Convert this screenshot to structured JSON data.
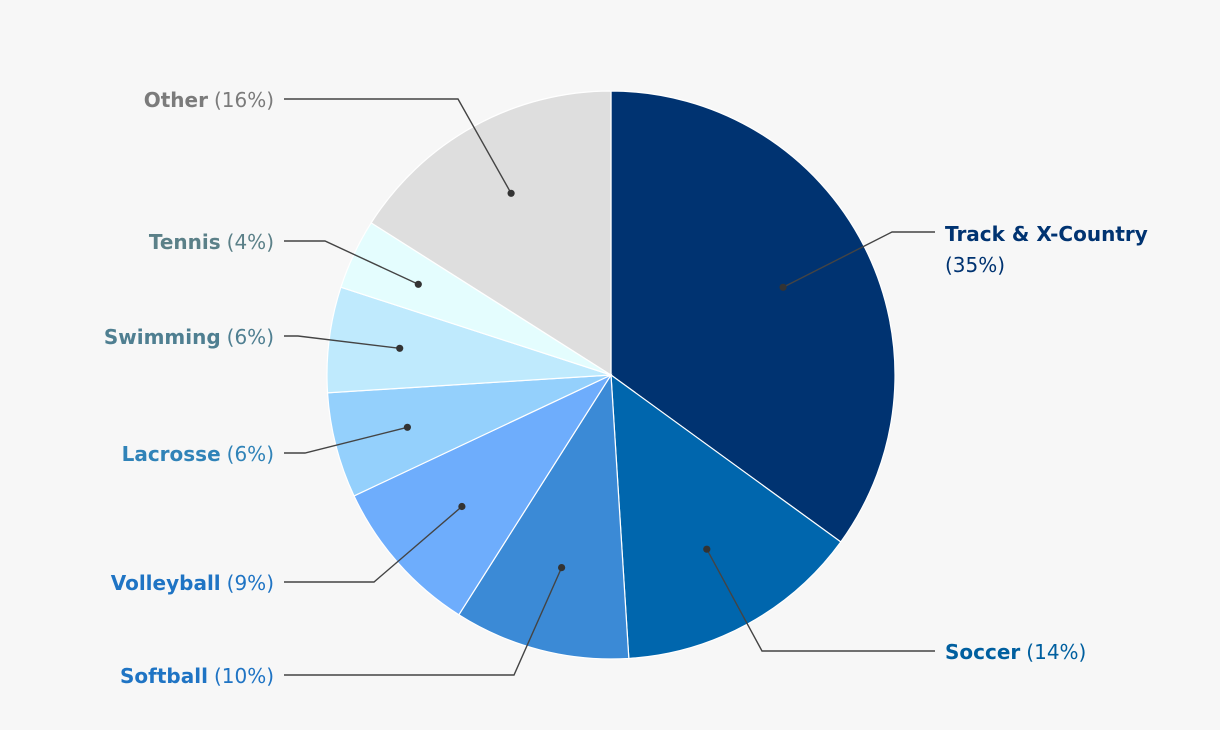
{
  "chart_data": {
    "type": "pie",
    "title": "",
    "legend": "none",
    "start_angle_deg": 0,
    "direction": "clockwise",
    "slices": [
      {
        "key": "track",
        "name": "Track & X-Country",
        "pct_label": "(35%)",
        "value": 35,
        "color": "#003371",
        "label_color": "#003371"
      },
      {
        "key": "soccer",
        "name": "Soccer",
        "pct_label": "(14%)",
        "value": 14,
        "color": "#0066ad",
        "label_color": "#005f9f"
      },
      {
        "key": "softball",
        "name": "Softball",
        "pct_label": "(10%)",
        "value": 10,
        "color": "#3b8ad6",
        "label_color": "#1f74c4"
      },
      {
        "key": "volleyball",
        "name": "Volleyball",
        "pct_label": "(9%)",
        "value": 9,
        "color": "#6eadfc",
        "label_color": "#1f74c4"
      },
      {
        "key": "lacrosse",
        "name": "Lacrosse",
        "pct_label": "(6%)",
        "value": 6,
        "color": "#94d0fc",
        "label_color": "#3083b8"
      },
      {
        "key": "swimming",
        "name": "Swimming",
        "pct_label": "(6%)",
        "value": 6,
        "color": "#bfeafd",
        "label_color": "#4f7f91"
      },
      {
        "key": "tennis",
        "name": "Tennis",
        "pct_label": "(4%)",
        "value": 4,
        "color": "#e4fdfe",
        "label_color": "#5b8088"
      },
      {
        "key": "other",
        "name": "Other",
        "pct_label": "(16%)",
        "value": 16,
        "color": "#dedede",
        "label_color": "#7b7b7b"
      }
    ]
  }
}
